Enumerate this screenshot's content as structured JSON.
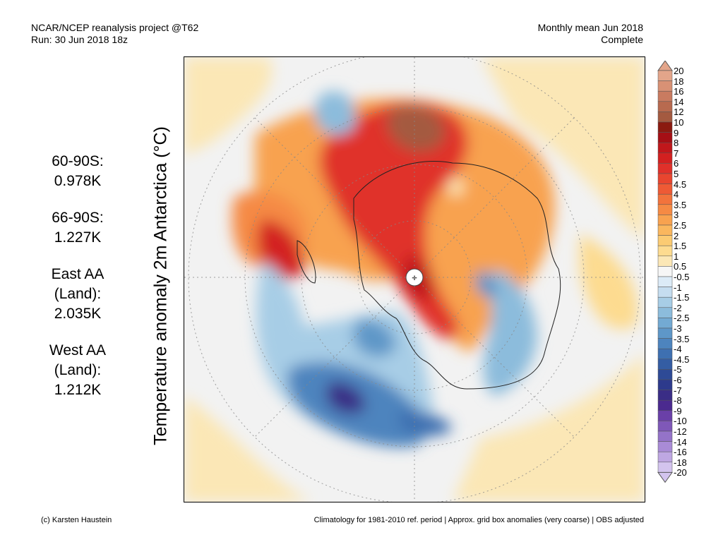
{
  "header": {
    "left_line1": "NCAR/NCEP reanalysis project @T62",
    "left_line2": "Run: 30 Jun 2018 18z",
    "right_line1": "Monthly mean Jun 2018",
    "right_line2": "Complete"
  },
  "axis_label": "Temperature anomaly 2m Antarctica (°C)",
  "stats": [
    {
      "lines": [
        "60-90S:",
        "0.978K"
      ]
    },
    {
      "lines": [
        "66-90S:",
        "1.227K"
      ]
    },
    {
      "lines": [
        "East AA",
        "(Land):",
        "2.035K"
      ]
    },
    {
      "lines": [
        "West AA",
        "(Land):",
        "1.212K"
      ]
    }
  ],
  "colorbar": {
    "labels": [
      "20",
      "18",
      "16",
      "14",
      "12",
      "10",
      "9",
      "8",
      "7",
      "6",
      "5",
      "4.5",
      "4",
      "3.5",
      "3",
      "2.5",
      "2",
      "1.5",
      "1",
      "0.5",
      "-0.5",
      "-1",
      "-1.5",
      "-2",
      "-2.5",
      "-3",
      "-3.5",
      "-4",
      "-4.5",
      "-5",
      "-6",
      "-7",
      "-8",
      "-9",
      "-10",
      "-12",
      "-14",
      "-16",
      "-18",
      "-20"
    ],
    "colors": [
      "#e3a58a",
      "#d89175",
      "#c97b60",
      "#b86a4f",
      "#a45a40",
      "#8b1a10",
      "#a50f15",
      "#c0171b",
      "#d32020",
      "#e0302a",
      "#e8452f",
      "#ee5a35",
      "#f2733c",
      "#f58a44",
      "#f8a24f",
      "#fab75e",
      "#fbcb73",
      "#fddb90",
      "#fbe7b6",
      "#f6f6f6",
      "#dcebf7",
      "#c5ddf0",
      "#a7cde6",
      "#8cbcdc",
      "#73aad3",
      "#5e97c8",
      "#4d84be",
      "#3e70b1",
      "#345da3",
      "#2e4a96",
      "#2d3a8c",
      "#3a2d86",
      "#4b2a8f",
      "#6a40a8",
      "#7f58b8",
      "#9473c8",
      "#a98bd6",
      "#bea7e2",
      "#d3c4ee"
    ]
  },
  "footer": {
    "left": "(c) Karsten Haustein",
    "right": "Climatology for 1981-2010 ref. period | Approx. grid box anomalies (very coarse) | OBS adjusted"
  }
}
